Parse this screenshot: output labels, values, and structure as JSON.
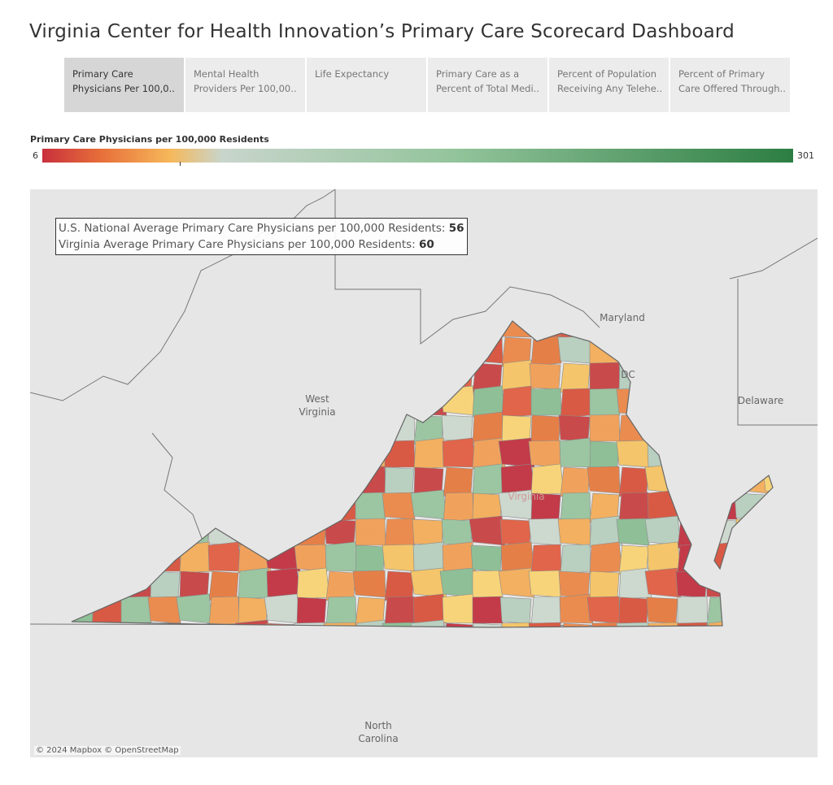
{
  "header": {
    "title": "Virginia Center for Health Innovation’s Primary Care Scorecard Dashboard"
  },
  "tabs": [
    {
      "lines": [
        "Primary Care",
        "Physicians Per 100,0.."
      ],
      "selected": true
    },
    {
      "lines": [
        "Mental Health",
        "Providers Per 100,00.."
      ],
      "selected": false
    },
    {
      "lines": [
        "Life Expectancy"
      ],
      "selected": false
    },
    {
      "lines": [
        "Primary Care as  a",
        "Percent of Total Medi.."
      ],
      "selected": false
    },
    {
      "lines": [
        "Percent of Population",
        "Receiving Any Telehe.."
      ],
      "selected": false
    },
    {
      "lines": [
        "Percent of Primary",
        "Care Offered Through.."
      ],
      "selected": false
    }
  ],
  "legend": {
    "title": "Primary Care Physicians per 100,000 Residents",
    "min": 6,
    "max": 301
  },
  "map": {
    "annotation": [
      {
        "text": "U.S. National Average Primary Care Physicians per 100,000 Residents:",
        "value": 56
      },
      {
        "text": "Virginia Average Primary Care Physicians per 100,000 Residents:",
        "value": 60
      }
    ],
    "labels": [
      {
        "lines": [
          "Maryland"
        ]
      },
      {
        "lines": [
          "West",
          "Virginia"
        ]
      },
      {
        "lines": [
          "Delaware"
        ]
      },
      {
        "lines": [
          "DC"
        ]
      },
      {
        "lines": [
          "Virginia"
        ]
      },
      {
        "lines": [
          "North",
          "Carolina"
        ]
      }
    ],
    "attribution": "© 2024 Mapbox © OpenStreetMap"
  }
}
